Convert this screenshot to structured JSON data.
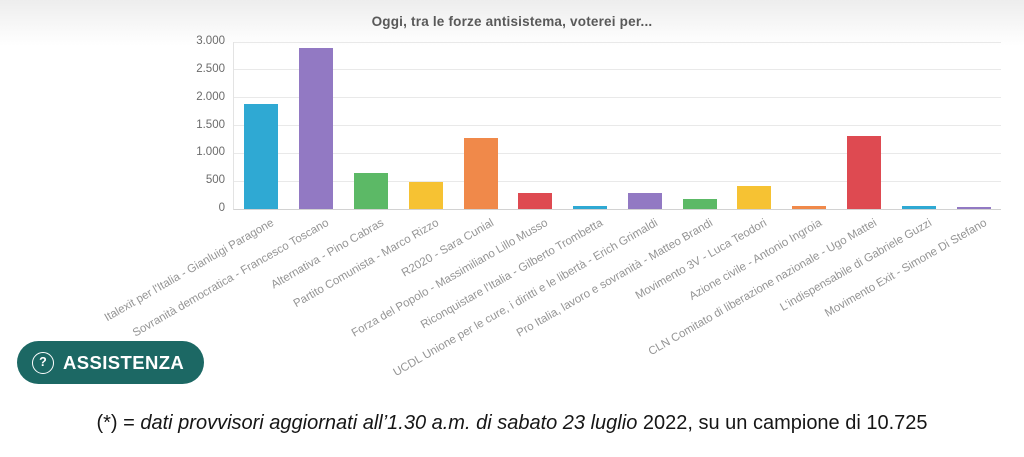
{
  "chart_data": {
    "type": "bar",
    "title": "Oggi, tra le forze antisistema, voterei per...",
    "categories": [
      "Italexit per l'Italia - Gianluigi Paragone",
      "Sovranità democratica - Francesco Toscano",
      "Alternativa - Pino Cabras",
      "Partito Comunista - Marco Rizzo",
      "R2020 - Sara Cunial",
      "Forza del Popolo - Massimiliano Lillo Musso",
      "Riconquistare l'Italia - Gilberto Trombetta",
      "UCDL Unione per le cure, i diritti e le libertà - Erich Grimaldi",
      "Pro Italia, lavoro e sovranità - Matteo Brandi",
      "Movimento 3V - Luca Teodori",
      "Azione civile - Antonio Ingroia",
      "CLN Comitato di liberazione nazionale - Ugo Mattei",
      "L'indispensabile di Gabriele Guzzi",
      "Movimento Exit - Simone Di Stefano"
    ],
    "values": [
      1880,
      2890,
      645,
      480,
      1280,
      290,
      60,
      280,
      175,
      415,
      50,
      1320,
      55,
      40
    ],
    "xlabel": "",
    "ylabel": "",
    "ylim": [
      0,
      3000
    ],
    "yticks": [
      {
        "value": 0,
        "label": "0"
      },
      {
        "value": 500,
        "label": "500"
      },
      {
        "value": 1000,
        "label": "1.000"
      },
      {
        "value": 1500,
        "label": "1.500"
      },
      {
        "value": 2000,
        "label": "2.000"
      },
      {
        "value": 2500,
        "label": "2.500"
      },
      {
        "value": 3000,
        "label": "3.000"
      }
    ],
    "grid": true,
    "legend": "none",
    "bar_color_cycle": [
      "#2fa9d3",
      "#9279c3",
      "#5cb966",
      "#f6c233",
      "#f0894a",
      "#de4a51"
    ]
  },
  "assistance_button": {
    "label": "ASSISTENZA",
    "icon": "question-mark",
    "background": "#1c6864",
    "text_color": "#ffffff"
  },
  "footnote": {
    "prefix": "(*) = ",
    "italic_part": "dati provvisori aggiornati all’1.30 a.m. di sabato 23 luglio ",
    "regular_part": "2022, su un campione di 10.725"
  }
}
